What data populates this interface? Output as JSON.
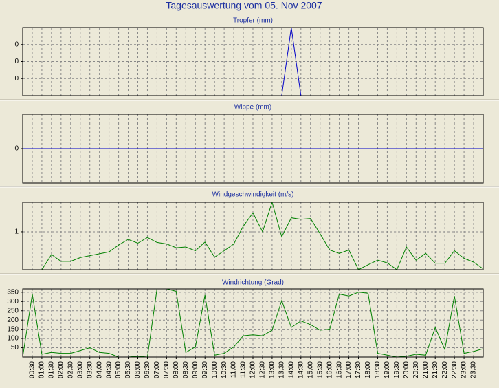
{
  "title": "Tagesauswertung vom 05. Nov 2007",
  "chart_data": [
    {
      "type": "line",
      "title": "Tropfer (mm)",
      "color": "#0000c8",
      "ylim": [
        0,
        1
      ],
      "yticks": [
        {
          "value": 0.25,
          "label": "0"
        },
        {
          "value": 0.5,
          "label": "0"
        },
        {
          "value": 0.75,
          "label": "0"
        }
      ],
      "values": [
        0,
        0,
        0,
        0,
        0,
        0,
        0,
        0,
        0,
        0,
        0,
        0,
        0,
        0,
        0,
        0,
        0,
        0,
        0,
        0,
        0,
        0,
        0,
        0,
        0,
        0,
        0,
        0,
        1,
        0,
        0,
        0,
        0,
        0,
        0,
        0,
        0,
        0,
        0,
        0,
        0,
        0,
        0,
        0,
        0,
        0,
        0,
        0,
        0
      ]
    },
    {
      "type": "line",
      "title": "Wippe (mm)",
      "color": "#0000c8",
      "ylim": [
        -1,
        1
      ],
      "yticks": [
        0
      ],
      "values": [
        0,
        0,
        0,
        0,
        0,
        0,
        0,
        0,
        0,
        0,
        0,
        0,
        0,
        0,
        0,
        0,
        0,
        0,
        0,
        0,
        0,
        0,
        0,
        0,
        0,
        0,
        0,
        0,
        0,
        0,
        0,
        0,
        0,
        0,
        0,
        0,
        0,
        0,
        0,
        0,
        0,
        0,
        0,
        0,
        0,
        0,
        0,
        0,
        0
      ]
    },
    {
      "type": "line",
      "title": "Windgeschwindigkeit (m/s)",
      "color": "#008000",
      "ylim": [
        0,
        1.78
      ],
      "yticks": [
        1
      ],
      "values": [
        0,
        0,
        0,
        0.4,
        0.22,
        0.22,
        0.32,
        0.37,
        0.42,
        0.47,
        0.65,
        0.8,
        0.7,
        0.85,
        0.72,
        0.68,
        0.58,
        0.6,
        0.5,
        0.73,
        0.33,
        0.5,
        0.68,
        1.15,
        1.5,
        1.0,
        1.78,
        0.87,
        1.37,
        1.33,
        1.35,
        0.95,
        0.52,
        0.43,
        0.52,
        0,
        0.13,
        0.25,
        0.18,
        0,
        0.6,
        0.25,
        0.43,
        0.17,
        0.17,
        0.5,
        0.3,
        0.2,
        0.02
      ]
    },
    {
      "type": "line",
      "title": "Windrichtung (Grad)",
      "color": "#008000",
      "ylim": [
        0,
        368
      ],
      "yticks": [
        50,
        100,
        150,
        200,
        250,
        300,
        350
      ],
      "categories": [
        null,
        "00:30",
        "01:00",
        "01:30",
        "02:00",
        "02:30",
        "03:00",
        "03:30",
        "04:00",
        "04:30",
        "05:00",
        "05:30",
        "06:00",
        "06:30",
        "07:00",
        "07:30",
        "08:00",
        "08:30",
        "09:00",
        "09:30",
        "10:00",
        "10:30",
        "11:00",
        "11:30",
        "12:00",
        "12:30",
        "13:00",
        "13:30",
        "14:00",
        "14:30",
        "15:00",
        "15:30",
        "16:00",
        "16:30",
        "17:00",
        "17:30",
        "18:00",
        "18:30",
        "19:00",
        "19:30",
        "20:00",
        "20:30",
        "21:00",
        "21:30",
        "22:00",
        "22:30",
        "23:00",
        "23:30",
        null
      ],
      "values": [
        0,
        340,
        15,
        25,
        20,
        20,
        35,
        50,
        25,
        20,
        0,
        0,
        5,
        0,
        368,
        368,
        355,
        25,
        55,
        335,
        10,
        20,
        55,
        115,
        120,
        115,
        145,
        305,
        160,
        195,
        175,
        145,
        150,
        340,
        330,
        350,
        345,
        20,
        10,
        0,
        5,
        15,
        10,
        160,
        40,
        330,
        20,
        30,
        45
      ]
    }
  ]
}
